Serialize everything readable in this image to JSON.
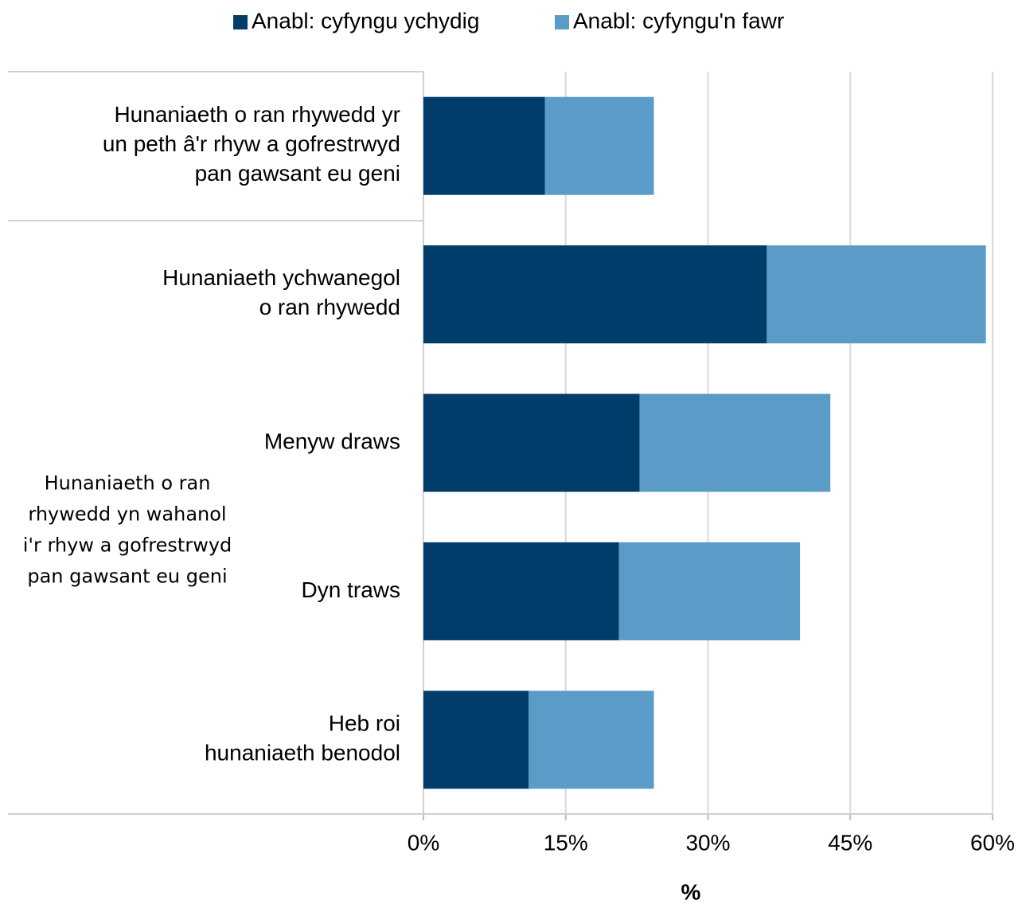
{
  "chart_data": {
    "type": "bar",
    "orientation": "horizontal",
    "stacked": true,
    "categories": [
      "Hunaniaeth o ran rhywedd yr\nun peth â'r rhyw a gofrestrwyd\npan gawsant eu geni",
      "Hunaniaeth ychwanegol\no ran rhywedd",
      "Menyw draws",
      "Dyn traws",
      "Heb roi\nhunaniaeth benodol"
    ],
    "group_label": "Hunaniaeth o ran\nrhywedd yn wahanol\ni'r rhyw a gofrestrwyd\npan gawsant eu geni",
    "series": [
      {
        "name": "Anabl: cyfyngu ychydig",
        "color": "#003d6b",
        "values": [
          12.8,
          36.2,
          22.8,
          20.6,
          11.1
        ]
      },
      {
        "name": "Anabl: cyfyngu'n fawr",
        "color": "#5b9bc8",
        "values": [
          11.5,
          23.1,
          20.1,
          19.1,
          13.2
        ]
      }
    ],
    "xlabel": "%",
    "xlim": [
      0,
      60
    ],
    "xticks": [
      {
        "value": 0,
        "label": "0%"
      },
      {
        "value": 15,
        "label": "15%"
      },
      {
        "value": 30,
        "label": "30%"
      },
      {
        "value": 45,
        "label": "45%"
      },
      {
        "value": 60,
        "label": "60%"
      }
    ],
    "grid": true,
    "legend": "top"
  }
}
